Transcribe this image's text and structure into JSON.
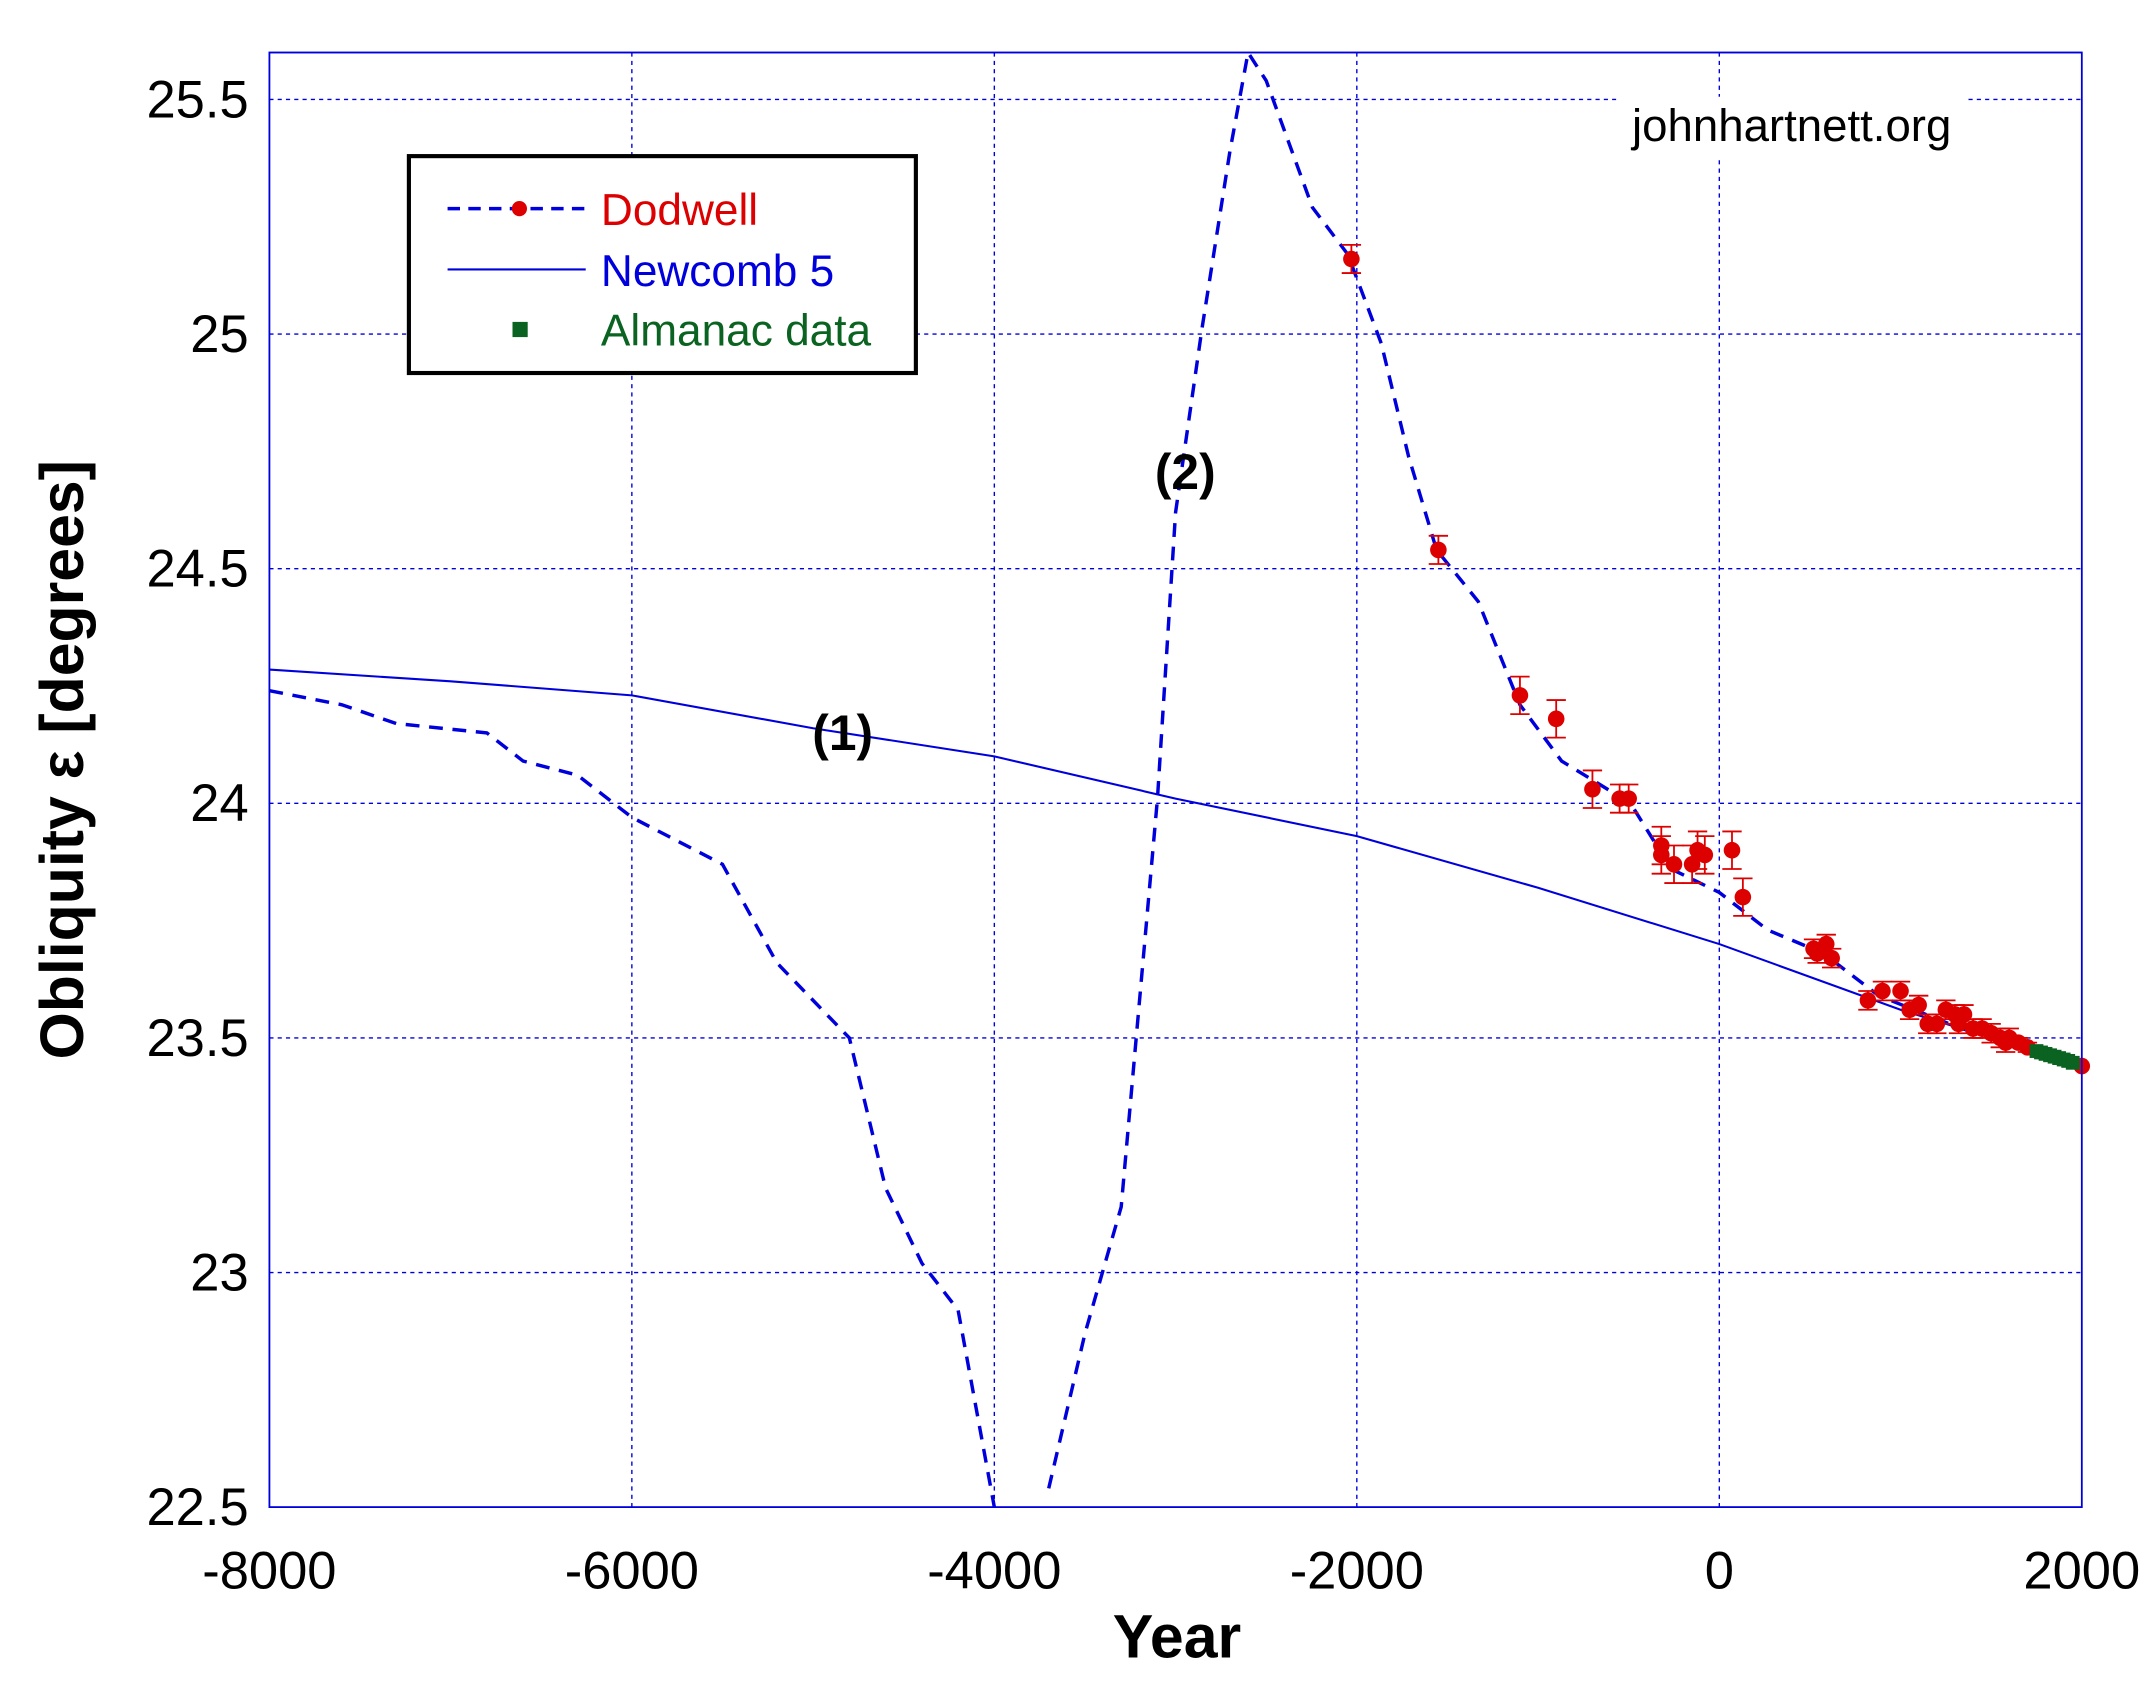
{
  "chart_data": {
    "type": "line",
    "xlabel": "Year",
    "ylabel": "Obliquity ε [degrees]",
    "xlim": [
      -8000,
      2000
    ],
    "ylim": [
      22.5,
      25.6
    ],
    "xticks": [
      -8000,
      -6000,
      -4000,
      -2000,
      0,
      2000
    ],
    "yticks": [
      22.5,
      23,
      23.5,
      24,
      24.5,
      25,
      25.5
    ],
    "ytick_labels": [
      "22.5",
      "23",
      "23.5",
      "24",
      "24.5",
      "25",
      "25.5"
    ],
    "grid": true,
    "watermark": "johnhartnett.org",
    "legend_position": "top-left",
    "annotations": [
      {
        "text": "(1)",
        "x": -4900,
        "y": 24.16
      },
      {
        "text": "(2)",
        "x": -2950,
        "y": 24.71
      }
    ],
    "series": [
      {
        "name": "Dodwell",
        "kind": "dashed-line",
        "color": "#0000dd",
        "x": [
          -8000,
          -7600,
          -7300,
          -6800,
          -6600,
          -6300,
          -6000,
          -5800,
          -5500,
          -5200,
          -5000,
          -4800,
          -4600,
          -4400,
          -4200,
          -4000,
          null,
          -3700,
          -3500,
          -3300,
          -3100,
          -3000,
          -2855,
          -2700,
          -2600,
          -2500,
          -2245,
          -2050,
          -1865,
          -1715,
          -1560,
          -1330,
          -1100,
          -870,
          -490,
          -265,
          0,
          267,
          575,
          880,
          1335,
          1718,
          2000
        ],
        "y": [
          24.24,
          24.21,
          24.17,
          24.15,
          24.09,
          24.06,
          23.97,
          23.93,
          23.87,
          23.66,
          23.58,
          23.5,
          23.18,
          23.02,
          22.92,
          22.5,
          null,
          22.54,
          22.87,
          23.14,
          24.01,
          24.62,
          25.01,
          25.39,
          25.6,
          25.54,
          25.27,
          25.17,
          24.98,
          24.74,
          24.54,
          24.43,
          24.21,
          24.09,
          24.0,
          23.86,
          23.81,
          23.73,
          23.68,
          23.59,
          23.52,
          23.48,
          23.45
        ]
      },
      {
        "name": "Dodwell",
        "kind": "points",
        "color": "#dd0000",
        "x": [
          -2030,
          -1550,
          -1100,
          -900,
          -700,
          -550,
          -500,
          -320,
          -320,
          -250,
          -150,
          -120,
          -80,
          70,
          130,
          520,
          540,
          590,
          620,
          820,
          900,
          1000,
          1050,
          1100,
          1150,
          1200,
          1250,
          1300,
          1320,
          1350,
          1400,
          1450,
          1500,
          1550,
          1580,
          1600,
          1650,
          1700,
          2000
        ],
        "y": [
          25.16,
          24.54,
          24.23,
          24.18,
          24.03,
          24.01,
          24.01,
          23.91,
          23.89,
          23.87,
          23.87,
          23.9,
          23.89,
          23.9,
          23.8,
          23.69,
          23.68,
          23.7,
          23.67,
          23.58,
          23.6,
          23.6,
          23.56,
          23.57,
          23.53,
          23.53,
          23.56,
          23.55,
          23.53,
          23.55,
          23.52,
          23.52,
          23.51,
          23.5,
          23.49,
          23.5,
          23.49,
          23.48,
          23.44
        ],
        "err": [
          0.03,
          0.03,
          0.04,
          0.04,
          0.04,
          0.03,
          0.03,
          0.04,
          0.04,
          0.04,
          0.04,
          0.04,
          0.04,
          0.04,
          0.04,
          0.02,
          0.02,
          0.02,
          0.02,
          0.02,
          0.02,
          0.02,
          0.02,
          0.02,
          0.02,
          0.02,
          0.02,
          0.02,
          0.02,
          0.02,
          0.02,
          0.02,
          0.02,
          0.02,
          0.02,
          0.02,
          0.01,
          0.01,
          0
        ]
      },
      {
        "name": "Newcomb 5",
        "kind": "solid-line",
        "color": "#0000dd",
        "x": [
          -8000,
          -7000,
          -6000,
          -5000,
          -4000,
          -3000,
          -2000,
          -1000,
          0,
          1000,
          2000
        ],
        "y": [
          24.285,
          24.26,
          24.23,
          24.16,
          24.1,
          24.01,
          23.93,
          23.82,
          23.7,
          23.56,
          23.44
        ]
      },
      {
        "name": "Almanac data",
        "kind": "squares",
        "color": "#0a6320",
        "x": [
          1750,
          1775,
          1800,
          1825,
          1850,
          1875,
          1900,
          1925,
          1950
        ],
        "y": [
          23.472,
          23.469,
          23.466,
          23.463,
          23.46,
          23.457,
          23.454,
          23.451,
          23.447
        ]
      }
    ]
  }
}
